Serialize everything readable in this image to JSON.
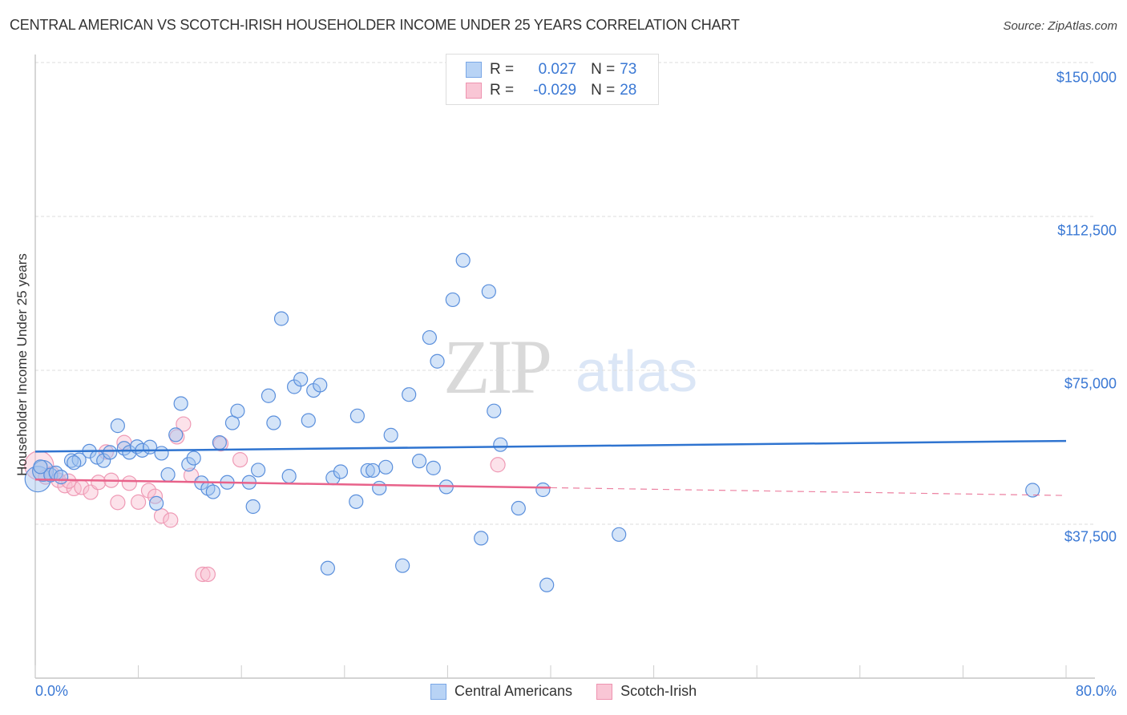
{
  "header": {
    "title": "CENTRAL AMERICAN VS SCOTCH-IRISH HOUSEHOLDER INCOME UNDER 25 YEARS CORRELATION CHART",
    "source": "Source: ZipAtlas.com"
  },
  "watermark": {
    "zip": "ZIP",
    "atlas": "atlas"
  },
  "legend_top": {
    "rows": [
      {
        "r_label": "R =",
        "r_value": "0.027",
        "n_label": "N =",
        "n_value": "73",
        "color": "#a9c8f2",
        "border": "#7aa7e6"
      },
      {
        "r_label": "R =",
        "r_value": "-0.029",
        "n_label": "N =",
        "n_value": "28",
        "color": "#f9c3d3",
        "border": "#ee93b0"
      }
    ]
  },
  "legend_bottom": {
    "items": [
      {
        "label": "Central Americans",
        "color": "#b8d3f5",
        "border": "#7aa7e6"
      },
      {
        "label": "Scotch-Irish",
        "color": "#f9c6d5",
        "border": "#ee93b0"
      }
    ]
  },
  "axes": {
    "y_label": "Householder Income Under 25 years",
    "y_ticks": [
      "$150,000",
      "$112,500",
      "$75,000",
      "$37,500"
    ],
    "x_min_label": "0.0%",
    "x_max_label": "80.0%"
  },
  "colors": {
    "blue": "#2f74d0",
    "blue_fill": "rgba(160,196,240,0.45)",
    "blue_stroke": "#5a8fdc",
    "pink": "#e8628a",
    "pink_fill": "rgba(248,190,208,0.45)",
    "pink_stroke": "#ef9ab5",
    "grid": "#dddddd"
  },
  "chart_data": {
    "type": "scatter",
    "title": "CENTRAL AMERICAN VS SCOTCH-IRISH HOUSEHOLDER INCOME UNDER 25 YEARS CORRELATION CHART",
    "xlabel": "",
    "ylabel": "Householder Income Under 25 years",
    "xlim": [
      0,
      80
    ],
    "ylim": [
      0,
      152000
    ],
    "y_ticks": [
      37500,
      75000,
      112500,
      150000
    ],
    "grid": true,
    "legend_position": "top-center",
    "series": [
      {
        "name": "Central Americans",
        "R": 0.027,
        "N": 73,
        "trend": {
          "x": [
            0,
            80
          ],
          "y": [
            55200,
            57800
          ]
        },
        "points": [
          [
            0.2,
            48500
          ],
          [
            0.6,
            50500
          ],
          [
            1.2,
            49500
          ],
          [
            1.6,
            50000
          ],
          [
            2.0,
            49000
          ],
          [
            2.8,
            53000
          ],
          [
            3.4,
            53200
          ],
          [
            4.2,
            55300
          ],
          [
            4.8,
            53800
          ],
          [
            5.3,
            53000
          ],
          [
            5.8,
            55000
          ],
          [
            6.4,
            61500
          ],
          [
            6.9,
            56000
          ],
          [
            7.3,
            55000
          ],
          [
            7.9,
            56400
          ],
          [
            8.3,
            55500
          ],
          [
            8.9,
            56300
          ],
          [
            9.4,
            42600
          ],
          [
            9.8,
            54800
          ],
          [
            10.3,
            49600
          ],
          [
            10.9,
            59300
          ],
          [
            11.3,
            66900
          ],
          [
            11.9,
            52100
          ],
          [
            12.3,
            53600
          ],
          [
            12.9,
            47600
          ],
          [
            13.4,
            46200
          ],
          [
            13.8,
            45400
          ],
          [
            14.3,
            57400
          ],
          [
            14.9,
            47700
          ],
          [
            15.3,
            62200
          ],
          [
            15.7,
            65100
          ],
          [
            16.6,
            47700
          ],
          [
            16.9,
            41800
          ],
          [
            17.3,
            50700
          ],
          [
            18.1,
            68800
          ],
          [
            18.5,
            62200
          ],
          [
            19.1,
            87600
          ],
          [
            19.7,
            49200
          ],
          [
            20.1,
            71000
          ],
          [
            20.6,
            72800
          ],
          [
            21.2,
            62800
          ],
          [
            21.6,
            70100
          ],
          [
            22.1,
            71400
          ],
          [
            22.7,
            26800
          ],
          [
            23.1,
            48800
          ],
          [
            23.7,
            50300
          ],
          [
            24.9,
            43000
          ],
          [
            25.0,
            63900
          ],
          [
            25.8,
            50600
          ],
          [
            26.2,
            50600
          ],
          [
            26.7,
            46300
          ],
          [
            27.2,
            51400
          ],
          [
            27.6,
            59200
          ],
          [
            28.5,
            27400
          ],
          [
            29.0,
            69100
          ],
          [
            29.8,
            52900
          ],
          [
            30.6,
            83000
          ],
          [
            30.9,
            51200
          ],
          [
            31.2,
            77200
          ],
          [
            31.9,
            46600
          ],
          [
            32.4,
            92200
          ],
          [
            33.2,
            101800
          ],
          [
            34.6,
            34100
          ],
          [
            35.2,
            94200
          ],
          [
            35.6,
            65100
          ],
          [
            36.1,
            56900
          ],
          [
            37.5,
            41400
          ],
          [
            39.4,
            45900
          ],
          [
            39.7,
            22700
          ],
          [
            45.3,
            35000
          ],
          [
            77.4,
            45800
          ],
          [
            0.4,
            51500
          ],
          [
            3.0,
            52500
          ]
        ]
      },
      {
        "name": "Scotch-Irish",
        "R": -0.029,
        "N": 28,
        "trend": {
          "x": [
            0,
            40,
            80
          ],
          "y": [
            48400,
            46400,
            44500
          ],
          "solid_until_x": 40
        },
        "points": [
          [
            0.3,
            51800
          ],
          [
            0.8,
            49000
          ],
          [
            1.3,
            49800
          ],
          [
            1.8,
            48200
          ],
          [
            2.3,
            46900
          ],
          [
            3.0,
            46200
          ],
          [
            3.6,
            46500
          ],
          [
            4.3,
            45300
          ],
          [
            4.9,
            47700
          ],
          [
            5.5,
            55100
          ],
          [
            5.9,
            48200
          ],
          [
            6.4,
            42800
          ],
          [
            6.9,
            57400
          ],
          [
            7.3,
            47500
          ],
          [
            8.0,
            42900
          ],
          [
            8.8,
            45700
          ],
          [
            9.3,
            44300
          ],
          [
            9.8,
            39500
          ],
          [
            10.5,
            38500
          ],
          [
            11.0,
            58800
          ],
          [
            11.5,
            61900
          ],
          [
            12.1,
            49400
          ],
          [
            13.0,
            25300
          ],
          [
            13.4,
            25300
          ],
          [
            14.4,
            57100
          ],
          [
            15.9,
            53200
          ],
          [
            35.9,
            52000
          ],
          [
            2.6,
            48000
          ]
        ]
      }
    ]
  }
}
